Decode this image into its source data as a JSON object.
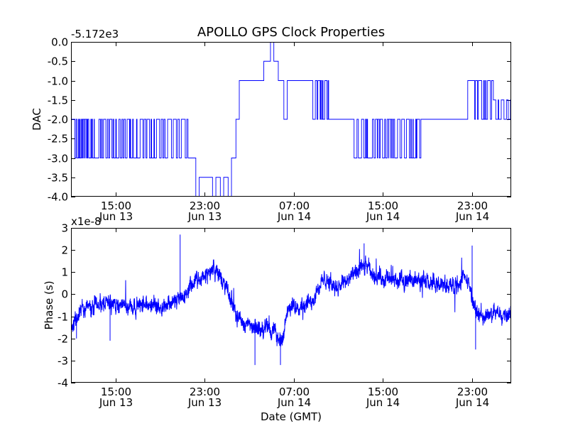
{
  "chart_data": [
    {
      "type": "line",
      "title": "APOLLO GPS Clock Properties",
      "ylabel": "DAC",
      "xlabel": "",
      "offset_text": "-5.172e3",
      "ylim": [
        -4.0,
        0.0
      ],
      "xlim_hours": [
        0,
        39.5
      ],
      "yticks": [
        {
          "v": 0.0,
          "label": "0.0"
        },
        {
          "v": -0.5,
          "label": "-0.5"
        },
        {
          "v": -1.0,
          "label": "-1.0"
        },
        {
          "v": -1.5,
          "label": "-1.5"
        },
        {
          "v": -2.0,
          "label": "-2.0"
        },
        {
          "v": -2.5,
          "label": "-2.5"
        },
        {
          "v": -3.0,
          "label": "-3.0"
        },
        {
          "v": -3.5,
          "label": "-3.5"
        },
        {
          "v": -4.0,
          "label": "-4.0"
        }
      ],
      "xticks": [
        {
          "h": 4,
          "time": "15:00",
          "date": "Jun 13"
        },
        {
          "h": 12,
          "time": "23:00",
          "date": "Jun 13"
        },
        {
          "h": 20,
          "time": "07:00",
          "date": "Jun 14"
        },
        {
          "h": 28,
          "time": "15:00",
          "date": "Jun 14"
        },
        {
          "h": 36,
          "time": "23:00",
          "date": "Jun 14"
        }
      ],
      "series": [
        {
          "name": "DAC",
          "color": "#0000ff",
          "segments": [
            [
              0.0,
              2.1,
              -2.0
            ],
            [
              2.1,
              6.2,
              -3.0
            ],
            [
              6.2,
              10.5,
              -2.0
            ],
            [
              10.5,
              11.2,
              -3.0
            ],
            [
              11.2,
              11.5,
              -4.0
            ],
            [
              11.5,
              12.7,
              -3.5
            ],
            [
              12.7,
              13.0,
              -4.0
            ],
            [
              13.0,
              13.4,
              -3.5
            ],
            [
              13.4,
              13.7,
              -4.0
            ],
            [
              13.7,
              14.1,
              -3.5
            ],
            [
              14.1,
              14.4,
              -4.0
            ],
            [
              14.4,
              14.8,
              -3.0
            ],
            [
              14.8,
              15.1,
              -2.0
            ],
            [
              15.1,
              17.3,
              -1.0
            ],
            [
              17.3,
              17.9,
              -0.5
            ],
            [
              17.9,
              18.2,
              0.0
            ],
            [
              18.2,
              18.6,
              -0.5
            ],
            [
              18.6,
              19.1,
              -1.0
            ],
            [
              19.1,
              19.4,
              -2.0
            ],
            [
              19.4,
              21.7,
              -1.0
            ],
            [
              21.7,
              23.3,
              -2.0
            ],
            [
              23.3,
              25.4,
              -2.0
            ],
            [
              25.4,
              26.8,
              -3.0
            ],
            [
              26.8,
              29.3,
              -3.0
            ],
            [
              29.3,
              33.9,
              -2.0
            ],
            [
              33.9,
              35.6,
              -2.0
            ],
            [
              35.6,
              37.9,
              -1.0
            ],
            [
              37.9,
              39.5,
              -1.5
            ]
          ],
          "toggles": [
            {
              "from": 0.3,
              "to": 2.0,
              "alt": -3.0,
              "n": 18
            },
            {
              "from": 2.3,
              "to": 6.0,
              "alt": -2.0,
              "n": 14
            },
            {
              "from": 6.4,
              "to": 10.3,
              "alt": -3.0,
              "n": 16
            },
            {
              "from": 21.9,
              "to": 23.2,
              "alt": -1.0,
              "n": 8
            },
            {
              "from": 25.6,
              "to": 26.7,
              "alt": -2.0,
              "n": 6
            },
            {
              "from": 27.0,
              "to": 29.1,
              "alt": -2.0,
              "n": 10
            },
            {
              "from": 29.5,
              "to": 31.4,
              "alt": -3.0,
              "n": 8
            },
            {
              "from": 36.2,
              "to": 37.7,
              "alt": -2.0,
              "n": 6
            },
            {
              "from": 38.1,
              "to": 39.4,
              "alt": -2.0,
              "n": 6
            }
          ]
        }
      ]
    },
    {
      "type": "line",
      "title": "",
      "ylabel": "Phase (s)",
      "xlabel": "Date (GMT)",
      "offset_text": "x1e-8",
      "ylim": [
        -4,
        3
      ],
      "xlim_hours": [
        0,
        39.5
      ],
      "yticks": [
        {
          "v": 3,
          "label": "3"
        },
        {
          "v": 2,
          "label": "2"
        },
        {
          "v": 1,
          "label": "1"
        },
        {
          "v": 0,
          "label": "0"
        },
        {
          "v": -1,
          "label": "-1"
        },
        {
          "v": -2,
          "label": "-2"
        },
        {
          "v": -3,
          "label": "-3"
        },
        {
          "v": -4,
          "label": "-4"
        }
      ],
      "xticks": [
        {
          "h": 4,
          "time": "15:00",
          "date": "Jun 13"
        },
        {
          "h": 12,
          "time": "23:00",
          "date": "Jun 13"
        },
        {
          "h": 20,
          "time": "07:00",
          "date": "Jun 14"
        },
        {
          "h": 28,
          "time": "15:00",
          "date": "Jun 14"
        },
        {
          "h": 36,
          "time": "23:00",
          "date": "Jun 14"
        }
      ],
      "series": [
        {
          "name": "Phase",
          "color": "#0000ff",
          "trend": [
            [
              0.0,
              -1.5
            ],
            [
              1.0,
              -0.6
            ],
            [
              3.0,
              -0.4
            ],
            [
              5.0,
              -0.5
            ],
            [
              8.0,
              -0.5
            ],
            [
              10.0,
              -0.2
            ],
            [
              11.0,
              0.5
            ],
            [
              12.0,
              0.8
            ],
            [
              12.8,
              1.2
            ],
            [
              13.6,
              0.6
            ],
            [
              14.5,
              -0.4
            ],
            [
              15.2,
              -1.2
            ],
            [
              16.5,
              -1.6
            ],
            [
              17.5,
              -1.5
            ],
            [
              18.3,
              -1.7
            ],
            [
              18.8,
              -2.2
            ],
            [
              19.5,
              -0.8
            ],
            [
              20.0,
              -0.5
            ],
            [
              21.5,
              -0.4
            ],
            [
              22.2,
              0.3
            ],
            [
              22.5,
              0.6
            ],
            [
              24.0,
              0.4
            ],
            [
              25.5,
              0.9
            ],
            [
              26.5,
              1.3
            ],
            [
              27.0,
              0.9
            ],
            [
              29.0,
              0.6
            ],
            [
              31.0,
              0.7
            ],
            [
              32.5,
              0.4
            ],
            [
              34.0,
              0.4
            ],
            [
              35.5,
              0.7
            ],
            [
              36.5,
              -1.0
            ],
            [
              38.0,
              -0.9
            ],
            [
              39.5,
              -0.8
            ]
          ],
          "noise_amplitude": 0.35,
          "spikes": [
            {
              "h": 9.8,
              "v": 2.7
            },
            {
              "h": 3.5,
              "v": -2.1
            },
            {
              "h": 16.5,
              "v": -3.2
            },
            {
              "h": 18.8,
              "v": -3.2
            },
            {
              "h": 26.3,
              "v": 2.3
            },
            {
              "h": 36.0,
              "v": 2.2
            },
            {
              "h": 36.3,
              "v": -2.5
            },
            {
              "h": 0.5,
              "v": -2.0
            }
          ]
        }
      ]
    }
  ]
}
